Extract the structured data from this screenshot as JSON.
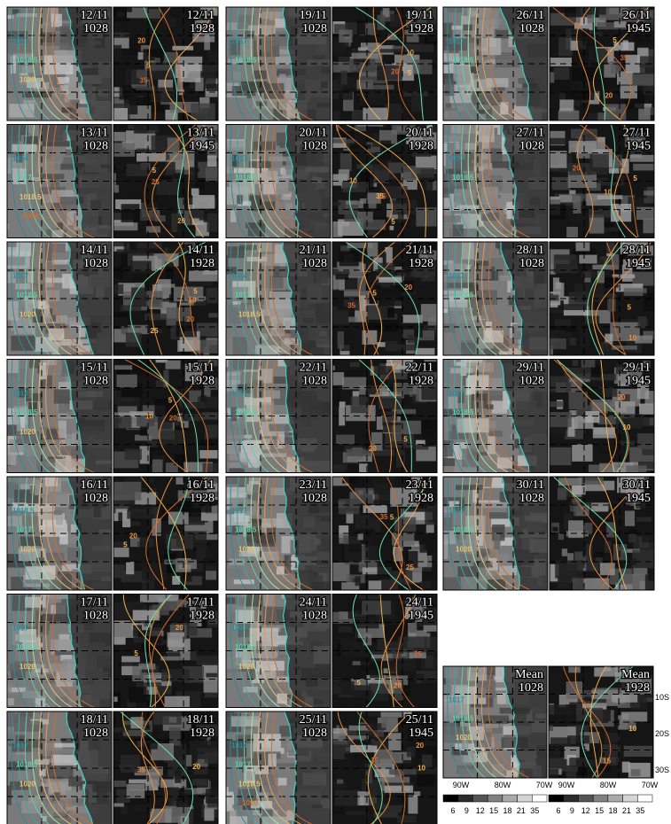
{
  "panels": [
    {
      "date": "12/11",
      "left_time": "1028",
      "right_time": "1928",
      "left_contours": [
        "1017",
        "1018.5",
        "1020"
      ],
      "right_contours": [
        "5",
        "20",
        "35"
      ]
    },
    {
      "date": "13/11",
      "left_time": "1028",
      "right_time": "1945",
      "left_contours": [
        "1014",
        "1017",
        "1018.5",
        "1020"
      ],
      "right_contours": [
        "5",
        "20",
        "25"
      ]
    },
    {
      "date": "14/11",
      "left_time": "1028",
      "right_time": "1928",
      "left_contours": [
        "1017",
        "1018.5",
        "1020"
      ],
      "right_contours": [
        "5",
        "10",
        "20",
        "25"
      ]
    },
    {
      "date": "15/11",
      "left_time": "1028",
      "right_time": "1928",
      "left_contours": [
        "1014",
        "1018.5",
        "1020"
      ],
      "right_contours": [
        "5",
        "10",
        "20"
      ]
    },
    {
      "date": "16/11",
      "left_time": "1028",
      "right_time": "1928",
      "left_contours": [
        "1018.5",
        "1017",
        "1020"
      ],
      "right_contours": [
        "5",
        "20"
      ]
    },
    {
      "date": "17/11",
      "left_time": "1028",
      "right_time": "1928",
      "left_contours": [
        "1017",
        "1018.5",
        "1020"
      ],
      "right_contours": [
        "5",
        "20"
      ]
    },
    {
      "date": "18/11",
      "left_time": "1028",
      "right_time": "1928",
      "left_contours": [
        "1017",
        "1018.5",
        "1020"
      ],
      "right_contours": [
        "20",
        "35"
      ]
    },
    {
      "date": "19/11",
      "left_time": "1028",
      "right_time": "1928",
      "left_contours": [
        "1017",
        "1018.5"
      ],
      "right_contours": [
        "5",
        "10",
        "20"
      ]
    },
    {
      "date": "20/11",
      "left_time": "1028",
      "right_time": "1928",
      "left_contours": [
        "1017",
        "1018.5"
      ],
      "right_contours": [
        "5",
        "10",
        "25",
        "35"
      ]
    },
    {
      "date": "21/11",
      "left_time": "1028",
      "right_time": "1928",
      "left_contours": [
        "1014",
        "1017",
        "1018.5"
      ],
      "right_contours": [
        "5",
        "20",
        "35"
      ]
    },
    {
      "date": "22/11",
      "left_time": "1028",
      "right_time": "1928",
      "left_contours": [
        "1017",
        "1018.5"
      ],
      "right_contours": [
        "5",
        "20"
      ]
    },
    {
      "date": "23/11",
      "left_time": "1028",
      "right_time": "1928",
      "left_contours": [
        "1017",
        "1018.5",
        "1020"
      ],
      "right_contours": [
        "5",
        "25",
        "35"
      ]
    },
    {
      "date": "24/11",
      "left_time": "1028",
      "right_time": "1945",
      "left_contours": [
        "1017",
        "1018.5",
        "1020"
      ],
      "right_contours": [
        "5",
        "20",
        "25"
      ]
    },
    {
      "date": "25/11",
      "left_time": "1028",
      "right_time": "1945",
      "left_contours": [
        "1014",
        "1017",
        "1018.5",
        "1020"
      ],
      "right_contours": [
        "10",
        "20",
        "35"
      ]
    },
    {
      "date": "26/11",
      "left_time": "1028",
      "right_time": "1945",
      "left_contours": [
        "1017",
        "1018.5"
      ],
      "right_contours": [
        "5",
        "20",
        "35"
      ]
    },
    {
      "date": "27/11",
      "left_time": "1028",
      "right_time": "1945",
      "left_contours": [
        "1017",
        "1018.5"
      ],
      "right_contours": [
        "5",
        "10",
        "20"
      ]
    },
    {
      "date": "28/11",
      "left_time": "1028",
      "right_time": "1945",
      "left_contours": [
        "1017",
        "1018.5"
      ],
      "right_contours": [
        "5",
        "10"
      ]
    },
    {
      "date": "29/11",
      "left_time": "1028",
      "right_time": "1945",
      "left_contours": [
        "1017",
        "1018.5"
      ],
      "right_contours": [
        "10",
        "20"
      ]
    },
    {
      "date": "30/11",
      "left_time": "1028",
      "right_time": "1945",
      "left_contours": [
        "1017",
        "1018.5",
        "1020"
      ],
      "right_contours": []
    }
  ],
  "mean": {
    "date": "Mean",
    "left_time": "1028",
    "right_time": "1928",
    "left_contours": [
      "1017",
      "1018.5",
      "1020"
    ],
    "right_contours": [
      "10",
      "15"
    ]
  },
  "lon_labels": [
    "90W",
    "80W",
    "70W"
  ],
  "lat_labels": [
    "10S",
    "20S",
    "30S"
  ],
  "colorbar_labels": [
    "6",
    "9",
    "12",
    "15",
    "18",
    "21",
    "35"
  ]
}
